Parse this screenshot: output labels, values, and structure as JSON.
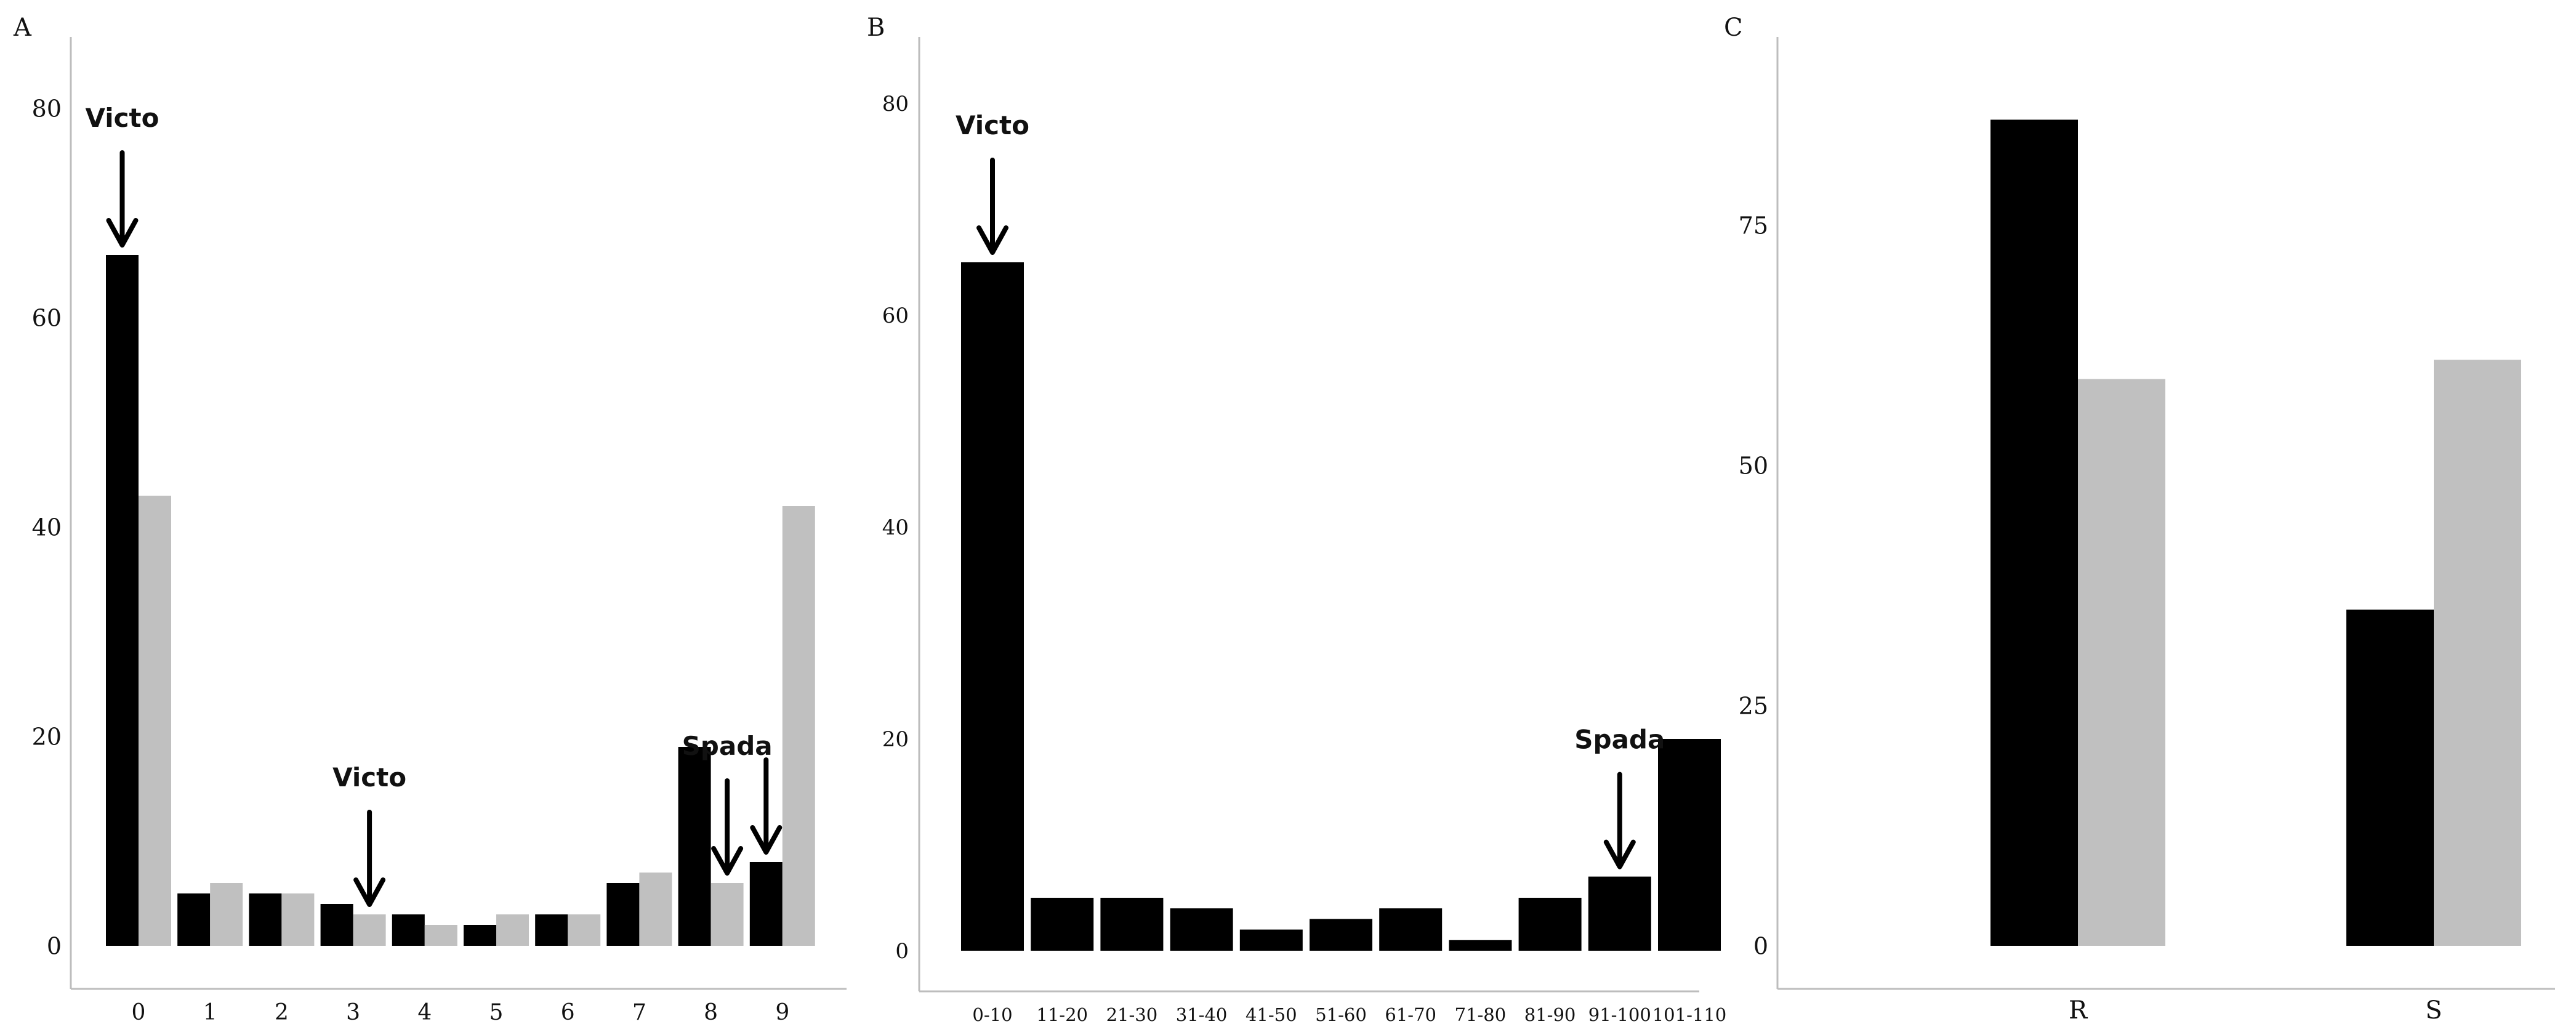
{
  "colors": {
    "primary": "#000000",
    "secondary": "#c0c0c0",
    "axis": "#bdbdbd"
  },
  "chart_data": [
    {
      "panel": "A",
      "type": "bar",
      "categories": [
        "0",
        "1",
        "2",
        "3",
        "4",
        "5",
        "6",
        "7",
        "8",
        "9"
      ],
      "series": [
        {
          "color": "#000000",
          "values": [
            66,
            5,
            5,
            4,
            3,
            2,
            3,
            6,
            19,
            8
          ]
        },
        {
          "color": "#c0c0c0",
          "values": [
            43,
            6,
            5,
            3,
            2,
            3,
            3,
            7,
            6,
            42
          ]
        }
      ],
      "yticks": [
        0,
        20,
        40,
        60,
        80
      ],
      "ylim": [
        0,
        86
      ],
      "grid": false,
      "annotations": [
        {
          "text": "Victo",
          "category": 0,
          "series": 0
        },
        {
          "text": "Victo",
          "category": 3,
          "series": 1
        },
        {
          "text": "Spada",
          "category": 8,
          "series": 1
        },
        {
          "text": "",
          "category": 9,
          "series": 0
        }
      ]
    },
    {
      "panel": "B",
      "type": "bar",
      "categories": [
        "0-10",
        "11-20",
        "21-30",
        "31-40",
        "41-50",
        "51-60",
        "61-70",
        "71-80",
        "81-90",
        "91-100",
        "101-110"
      ],
      "series": [
        {
          "color": "#000000",
          "values": [
            65,
            5,
            5,
            4,
            2,
            3,
            4,
            1,
            5,
            7,
            20
          ]
        }
      ],
      "yticks": [
        0,
        20,
        40,
        60,
        80
      ],
      "ylim": [
        0,
        86
      ],
      "grid": false,
      "annotations": [
        {
          "text": "Victo",
          "category": 0,
          "series": 0
        },
        {
          "text": "Spada",
          "category": 9,
          "series": 0
        }
      ]
    },
    {
      "panel": "C",
      "type": "bar",
      "categories": [
        "R",
        "S"
      ],
      "series": [
        {
          "color": "#000000",
          "values": [
            86,
            35
          ]
        },
        {
          "color": "#c0c0c0",
          "values": [
            59,
            61
          ]
        }
      ],
      "yticks": [
        0,
        25,
        50,
        75
      ],
      "ylim": [
        0,
        92
      ],
      "grid": false,
      "annotations": []
    }
  ]
}
